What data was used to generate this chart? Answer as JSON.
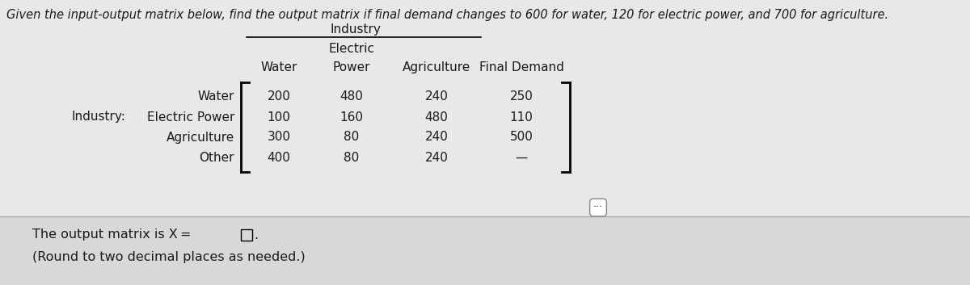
{
  "title": "Given the input-output matrix below, find the output matrix if final demand changes to 600 for water, 120 for electric power, and 700 for agriculture.",
  "row_labels": [
    "Water",
    "Electric Power",
    "Agriculture",
    "Other"
  ],
  "matrix_data": [
    [
      "200",
      "480",
      "240",
      "250"
    ],
    [
      "100",
      "160",
      "480",
      "110"
    ],
    [
      "300",
      "80",
      "240",
      "500"
    ],
    [
      "400",
      "80",
      "240",
      "—"
    ]
  ],
  "industry_label": "Industry:",
  "output_text": "The output matrix is X =",
  "note_text": "(Round to two decimal places as needed.)",
  "bg_color_top": "#e8e8e8",
  "bg_color_bot": "#d8d8d8",
  "text_color": "#1a1a1a",
  "col_headers": [
    "Water",
    "Electric\nPower",
    "Agriculture",
    "Final Demand"
  ],
  "industry_header": "Industry"
}
